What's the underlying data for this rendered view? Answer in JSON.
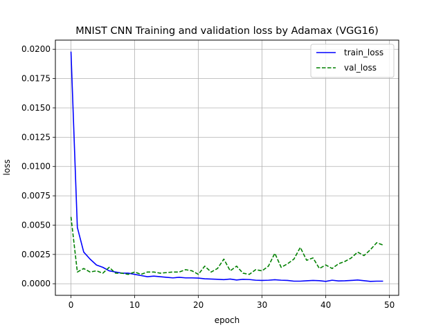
{
  "chart_data": {
    "type": "line",
    "title": "MNIST CNN Training and validation loss by Adamax (VGG16)",
    "xlabel": "epoch",
    "ylabel": "loss",
    "xlim": [
      -2.45,
      51.45
    ],
    "ylim": [
      -0.00099,
      0.02078
    ],
    "xticks": [
      0,
      10,
      20,
      30,
      40,
      50
    ],
    "xtick_labels": [
      "0",
      "10",
      "20",
      "30",
      "40",
      "50"
    ],
    "yticks": [
      0.0,
      0.0025,
      0.005,
      0.0075,
      0.01,
      0.0125,
      0.015,
      0.0175,
      0.02
    ],
    "ytick_labels": [
      "0.0000",
      "0.0025",
      "0.0050",
      "0.0075",
      "0.0100",
      "0.0125",
      "0.0150",
      "0.0175",
      "0.0200"
    ],
    "grid": true,
    "legend_position": "top-right",
    "x": [
      0,
      1,
      2,
      3,
      4,
      5,
      6,
      7,
      8,
      9,
      10,
      11,
      12,
      13,
      14,
      15,
      16,
      17,
      18,
      19,
      20,
      21,
      22,
      23,
      24,
      25,
      26,
      27,
      28,
      29,
      30,
      31,
      32,
      33,
      34,
      35,
      36,
      37,
      38,
      39,
      40,
      41,
      42,
      43,
      44,
      45,
      46,
      47,
      48,
      49
    ],
    "series": [
      {
        "name": "train_loss",
        "color": "#0000ff",
        "dash": "solid",
        "values": [
          0.0198,
          0.0048,
          0.0027,
          0.0021,
          0.0016,
          0.0014,
          0.0011,
          0.001,
          0.0009,
          0.0009,
          0.0008,
          0.0007,
          0.0006,
          0.00065,
          0.0006,
          0.00055,
          0.0005,
          0.00055,
          0.0005,
          0.0005,
          0.00048,
          0.00042,
          0.0004,
          0.00038,
          0.00035,
          0.0004,
          0.00032,
          0.00038,
          0.00036,
          0.0003,
          0.00028,
          0.0003,
          0.00034,
          0.0003,
          0.00028,
          0.00022,
          0.00022,
          0.00025,
          0.00028,
          0.00026,
          0.0002,
          0.0003,
          0.00024,
          0.00025,
          0.00028,
          0.00032,
          0.00026,
          0.0002,
          0.00022,
          0.00022
        ]
      },
      {
        "name": "val_loss",
        "color": "#008000",
        "dash": "dashed",
        "values": [
          0.0057,
          0.001,
          0.0013,
          0.001,
          0.0011,
          0.0009,
          0.0014,
          0.0009,
          0.0009,
          0.0008,
          0.001,
          0.0008,
          0.001,
          0.001,
          0.0009,
          0.00095,
          0.001,
          0.001,
          0.0012,
          0.0011,
          0.0008,
          0.0015,
          0.001,
          0.0013,
          0.0021,
          0.0011,
          0.0015,
          0.0009,
          0.0008,
          0.0012,
          0.0011,
          0.0015,
          0.0026,
          0.0014,
          0.0017,
          0.0021,
          0.0031,
          0.002,
          0.0022,
          0.0013,
          0.0016,
          0.0013,
          0.0017,
          0.0019,
          0.0022,
          0.0027,
          0.0024,
          0.0029,
          0.0035,
          0.0033
        ]
      }
    ]
  }
}
